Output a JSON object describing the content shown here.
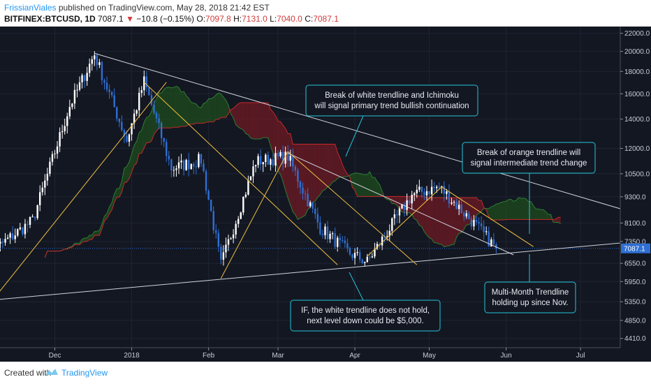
{
  "header": {
    "user": "FrissianViales",
    "published": "published on TradingView.com, May 28, 2018 21:42 EST",
    "symbol": "BITFINEX:BTCUSD, 1D",
    "last": "7087.1",
    "change": "−10.8 (−0.15%)",
    "o_label": "O:",
    "o_val": "7097.8",
    "h_label": "H:",
    "h_val": "7131.0",
    "l_label": "L:",
    "l_val": "7040.0",
    "c_label": "C:",
    "c_val": "7087.1"
  },
  "footer": {
    "created": "Created with",
    "brand": "TradingView"
  },
  "colors": {
    "background": "#131722",
    "up_candle": "#ffffff",
    "down_candle": "#2f6fd3",
    "white_trendline": "#d0d4dc",
    "orange_trendline": "#f0c040",
    "cloud_bull": "#1e4a1e",
    "cloud_bear": "#6a1a24",
    "annotation_border": "#26c6da"
  },
  "chart_data": {
    "type": "candlestick",
    "x_ticks": [
      "Dec",
      "2018",
      "Feb",
      "Mar",
      "Apr",
      "May",
      "Jun",
      "Jul"
    ],
    "y_ticks": [
      22000.0,
      20000.0,
      18000.0,
      16000.0,
      14000.0,
      12000.0,
      10500.0,
      9300.0,
      8100.0,
      7350.0,
      6550.0,
      5950.0,
      5350.0,
      4850.0,
      4410.0
    ],
    "y_scale": "log",
    "ylim": [
      4200,
      22800
    ],
    "last_price": "7087.1",
    "series": [
      {
        "name": "BTCUSD",
        "x": [
          "2017-11-06",
          "2017-11-22",
          "2017-12-07",
          "2017-12-17",
          "2017-12-30",
          "2018-01-06",
          "2018-01-17",
          "2018-01-29",
          "2018-02-06",
          "2018-02-20",
          "2018-03-05",
          "2018-03-18",
          "2018-03-30",
          "2018-04-06",
          "2018-04-24",
          "2018-05-05",
          "2018-05-18",
          "2018-05-28"
        ],
        "values": [
          7000,
          8200,
          15000,
          19700,
          12500,
          17100,
          10800,
          11300,
          6500,
          11200,
          11500,
          7900,
          6900,
          6600,
          9400,
          9800,
          8200,
          7087
        ]
      }
    ],
    "trendlines": {
      "white": [
        {
          "from": [
            "2017-11-06",
            5400
          ],
          "to": [
            "2018-07-24",
            7350
          ]
        },
        {
          "from": [
            "2017-12-17",
            19800
          ],
          "to": [
            "2018-07-24",
            8500
          ]
        },
        {
          "from": [
            "2018-03-05",
            11700
          ],
          "to": [
            "2018-06-04",
            6850
          ]
        }
      ],
      "orange": [
        {
          "from": [
            "2017-11-06",
            5400
          ],
          "to": [
            "2018-01-15",
            17000
          ]
        },
        {
          "from": [
            "2018-01-06",
            17000
          ],
          "to": [
            "2018-03-25",
            6500
          ]
        },
        {
          "from": [
            "2018-02-06",
            6050
          ],
          "to": [
            "2018-03-05",
            11800
          ]
        },
        {
          "from": [
            "2018-03-05",
            11800
          ],
          "to": [
            "2018-04-26",
            6500
          ]
        },
        {
          "from": [
            "2018-04-06",
            6800
          ],
          "to": [
            "2018-05-06",
            9800
          ]
        },
        {
          "from": [
            "2018-05-06",
            9800
          ],
          "to": [
            "2018-06-12",
            7150
          ]
        }
      ]
    },
    "annotations": [
      {
        "text": [
          "Break of white trendline and Ichimoku",
          "will signal primary trend bullish continuation"
        ]
      },
      {
        "text": [
          "Break of orange trendline will",
          "signal intermediate trend change"
        ]
      },
      {
        "text": [
          "Multi-Month Trendline",
          "holding up since Nov."
        ]
      },
      {
        "text": [
          "IF, the white trendline does not hold,",
          "next level down could be $5,000."
        ]
      }
    ]
  }
}
